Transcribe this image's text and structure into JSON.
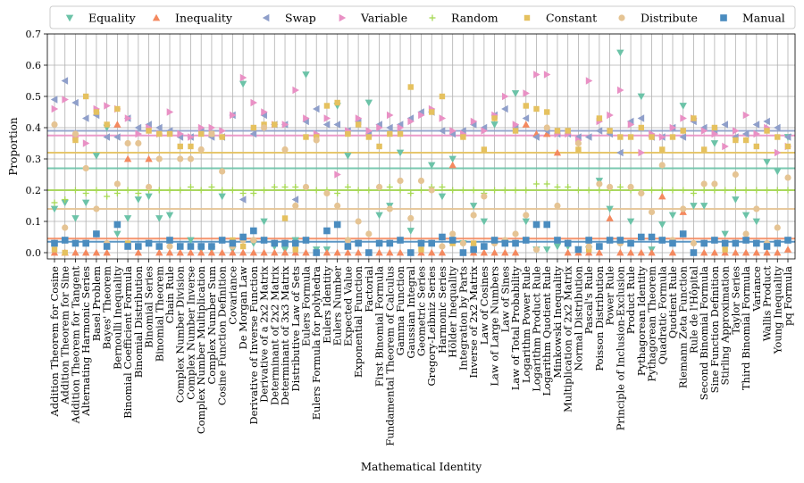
{
  "chart_data": {
    "type": "scatter",
    "xlabel": "Mathematical Identity",
    "ylabel": "Proportion",
    "ylim": [
      -0.02,
      0.7
    ],
    "yticks": [
      0.0,
      0.1,
      0.2,
      0.3,
      0.4,
      0.5,
      0.6,
      0.7
    ],
    "ytick_labels": [
      "0.0",
      "0.1",
      "0.2",
      "0.3",
      "0.4",
      "0.5",
      "0.6",
      "0.7"
    ],
    "grid": true,
    "legend_position": "top",
    "categories": [
      "Addition Theorem for Cosine",
      "Addition Theorem for Sine",
      "Addition Theorem for Tangent",
      "Alternating Harmonic Series",
      "Basel Problem",
      "Bayes' Theorem",
      "Bernoulli Inequality",
      "Binomial Coefficient Formula",
      "Binomial Distribution",
      "Binomial Series",
      "Binomial Theorem",
      "Chain Rule",
      "Complex Number Division",
      "Complex Number Inverse",
      "Complex Number Multiplication",
      "Complex Number Sum",
      "Cosine Function Definition",
      "Covariance",
      "De Morgan Law",
      "Derivative of Inverse Function",
      "Derivative of a 2x2 Matrix",
      "Determinant of 2x2 Matrix",
      "Determinant of 3x3 Matrix",
      "Distributive Law of Sets",
      "Eulers Formula",
      "Eulers Formula for polyhedra",
      "Eulers Identity",
      "Eulers Number",
      "Expected Value",
      "Exponential Function",
      "Factorial",
      "First Binomial Formula",
      "Fundamental Theorem of Calculus",
      "Gamma Function",
      "Gaussian Integral",
      "Geometric Series",
      "Gregory-Leibniz Series",
      "Harmonic Series",
      "Hölder Inequality",
      "Integration by Parts",
      "Inverse of 2x2 Matrix",
      "Law of Cosines",
      "Law of Large Numbers",
      "Law of Sines",
      "Law of Total Probability",
      "Logarithm Power Rule",
      "Logarithm Product Rule",
      "Logarithm Quotient Rule",
      "Minkowski Inequality",
      "Multiplication of 2x2 Matrix",
      "Normal Distribution",
      "Pascal's Rule",
      "Poisson Distribution",
      "Power Rule",
      "Principle of Inclusion-Exclusion",
      "Product Rule",
      "Pythagorean Identity",
      "Pythagorean Theorem",
      "Quadratic Formula",
      "Quotient Rule",
      "Riemann Zeta Function",
      "Rule de l'Hôpital",
      "Second Binomial Formula",
      "Sine Function Definition",
      "Stirling Approximation",
      "Taylor Series",
      "Third Binomial Formula",
      "Variance",
      "Wallis Product",
      "Young Inequality",
      "pq Formula"
    ],
    "series": [
      {
        "name": "Equality",
        "marker": "triangle-down",
        "color": "#6cc3a8",
        "values": [
          0.14,
          0.16,
          0.11,
          0.16,
          0.31,
          0.4,
          0.06,
          0.11,
          0.17,
          0.18,
          0.11,
          0.12,
          0.02,
          0.04,
          0.01,
          0.01,
          0.18,
          0.01,
          0.54,
          0.03,
          0.1,
          0.02,
          0.01,
          0.04,
          0.57,
          0.01,
          0.01,
          0.47,
          0.31,
          0.03,
          0.48,
          0.12,
          0.15,
          0.32,
          0.07,
          0.03,
          0.28,
          0.18,
          0.3,
          0.03,
          0.15,
          0.1,
          0.41,
          0.03,
          0.51,
          0.1,
          0.01,
          0.01,
          0.02,
          0.02,
          0.01,
          0.01,
          0.23,
          0.14,
          0.64,
          0.1,
          0.5,
          0.01,
          0.09,
          0.12,
          0.47,
          0.15,
          0.15,
          0.35,
          0.06,
          0.17,
          0.12,
          0.1,
          0.29,
          0.26,
          0.37
        ]
      },
      {
        "name": "Inequality",
        "marker": "triangle-up",
        "color": "#f4895f",
        "values": [
          0.0,
          0.0,
          0.0,
          0.0,
          0.0,
          0.0,
          0.41,
          0.3,
          0.0,
          0.3,
          0.0,
          0.0,
          0.0,
          0.0,
          0.0,
          0.0,
          0.0,
          0.0,
          0.0,
          0.0,
          0.0,
          0.0,
          0.0,
          0.0,
          0.0,
          0.0,
          0.0,
          0.0,
          0.0,
          0.0,
          0.0,
          0.0,
          0.0,
          0.0,
          0.0,
          0.0,
          0.0,
          0.0,
          0.28,
          0.0,
          0.0,
          0.0,
          0.0,
          0.0,
          0.0,
          0.41,
          0.38,
          0.38,
          0.32,
          0.0,
          0.0,
          0.0,
          0.0,
          0.11,
          0.0,
          0.0,
          0.0,
          0.0,
          0.18,
          0.0,
          0.13,
          0.0,
          0.0,
          0.0,
          0.0,
          0.0,
          0.0,
          0.0,
          0.0,
          0.0,
          0.01
        ]
      },
      {
        "name": "Swap",
        "marker": "triangle-left",
        "color": "#8f9fca",
        "values": [
          0.49,
          0.55,
          0.48,
          0.43,
          0.44,
          0.37,
          0.37,
          0.43,
          0.4,
          0.41,
          0.4,
          0.39,
          0.37,
          0.37,
          0.39,
          0.37,
          0.37,
          0.44,
          0.17,
          0.38,
          0.44,
          0.41,
          0.41,
          0.17,
          0.42,
          0.46,
          0.41,
          0.41,
          0.39,
          0.42,
          0.38,
          0.41,
          0.4,
          0.41,
          0.43,
          0.45,
          0.45,
          0.39,
          0.38,
          0.39,
          0.41,
          0.4,
          0.44,
          0.46,
          0.4,
          0.43,
          0.37,
          0.39,
          0.38,
          0.38,
          0.37,
          0.37,
          0.39,
          0.38,
          0.32,
          0.42,
          0.43,
          0.37,
          0.37,
          0.4,
          0.37,
          0.42,
          0.4,
          0.39,
          0.41,
          0.37,
          0.38,
          0.41,
          0.42,
          0.4,
          0.37
        ]
      },
      {
        "name": "Variable",
        "marker": "triangle-right",
        "color": "#e991c5",
        "values": [
          0.46,
          0.49,
          0.37,
          0.35,
          0.46,
          0.47,
          0.46,
          0.43,
          0.38,
          0.4,
          0.38,
          0.45,
          0.38,
          0.37,
          0.4,
          0.4,
          0.39,
          0.44,
          0.56,
          0.48,
          0.45,
          0.41,
          0.41,
          0.52,
          0.43,
          0.38,
          0.43,
          0.25,
          0.39,
          0.43,
          0.39,
          0.4,
          0.44,
          0.4,
          0.42,
          0.44,
          0.46,
          0.43,
          0.39,
          0.38,
          0.42,
          0.39,
          0.44,
          0.5,
          0.41,
          0.51,
          0.57,
          0.57,
          0.38,
          0.38,
          0.36,
          0.55,
          0.42,
          0.44,
          0.52,
          0.41,
          0.32,
          0.38,
          0.37,
          0.4,
          0.43,
          0.43,
          0.39,
          0.38,
          0.34,
          0.39,
          0.44,
          0.38,
          0.4,
          0.32,
          0.34
        ]
      },
      {
        "name": "Random",
        "marker": "plus",
        "color": "#a6d854",
        "values": [
          0.16,
          0.17,
          0.2,
          0.19,
          0.2,
          0.18,
          0.19,
          0.2,
          0.19,
          0.2,
          0.2,
          0.2,
          0.2,
          0.21,
          0.2,
          0.21,
          0.2,
          0.2,
          0.19,
          0.19,
          0.2,
          0.21,
          0.21,
          0.21,
          0.21,
          0.2,
          0.2,
          0.19,
          0.21,
          0.2,
          0.2,
          0.21,
          0.21,
          0.2,
          0.19,
          0.2,
          0.21,
          0.21,
          0.2,
          0.2,
          0.2,
          0.19,
          0.2,
          0.2,
          0.2,
          0.2,
          0.22,
          0.22,
          0.21,
          0.21,
          0.2,
          0.2,
          0.2,
          0.2,
          0.21,
          0.2,
          0.19,
          0.2,
          0.2,
          0.2,
          0.2,
          0.19,
          0.2,
          0.2,
          0.2,
          0.2,
          0.2,
          0.2,
          0.2,
          0.2,
          0.2
        ]
      },
      {
        "name": "Constant",
        "marker": "square-small",
        "color": "#e5c15f",
        "values": [
          0.01,
          0.0,
          0.36,
          0.5,
          0.45,
          0.41,
          0.46,
          0.03,
          0.02,
          0.39,
          0.38,
          0.38,
          0.34,
          0.34,
          0.38,
          0.38,
          0.37,
          0.04,
          0.02,
          0.4,
          0.41,
          0.41,
          0.11,
          0.01,
          0.37,
          0.37,
          0.47,
          0.48,
          0.38,
          0.41,
          0.37,
          0.34,
          0.38,
          0.38,
          0.53,
          0.01,
          0.45,
          0.5,
          0.03,
          0.37,
          0.03,
          0.33,
          0.43,
          0.03,
          0.39,
          0.47,
          0.46,
          0.45,
          0.39,
          0.39,
          0.33,
          0.01,
          0.43,
          0.39,
          0.37,
          0.37,
          0.4,
          0.37,
          0.33,
          0.37,
          0.39,
          0.43,
          0.33,
          0.4,
          0.01,
          0.36,
          0.36,
          0.34,
          0.39,
          0.37,
          0.34
        ]
      },
      {
        "name": "Distribute",
        "marker": "circle",
        "color": "#e5c494",
        "values": [
          0.41,
          0.08,
          0.38,
          0.27,
          0.14,
          0.03,
          0.22,
          0.35,
          0.35,
          0.21,
          0.3,
          0.02,
          0.3,
          0.3,
          0.33,
          0.38,
          0.26,
          0.02,
          0.04,
          0.04,
          0.4,
          0.03,
          0.33,
          0.15,
          0.21,
          0.36,
          0.19,
          0.15,
          0.04,
          0.1,
          0.06,
          0.21,
          0.14,
          0.23,
          0.11,
          0.23,
          0.2,
          0.02,
          0.06,
          0.03,
          0.12,
          0.18,
          0.03,
          0.04,
          0.06,
          0.12,
          0.01,
          0.4,
          0.15,
          0.03,
          0.35,
          0.02,
          0.22,
          0.21,
          0.03,
          0.21,
          0.19,
          0.13,
          0.28,
          0.04,
          0.14,
          0.03,
          0.22,
          0.22,
          0.03,
          0.25,
          0.06,
          0.14,
          0.03,
          0.08,
          0.24
        ]
      },
      {
        "name": "Manual",
        "marker": "square",
        "color": "#4a8cbf",
        "values": [
          0.03,
          0.04,
          0.03,
          0.03,
          0.06,
          0.02,
          0.09,
          0.02,
          0.02,
          0.03,
          0.02,
          0.04,
          0.02,
          0.02,
          0.02,
          0.02,
          0.04,
          0.03,
          0.05,
          0.07,
          0.04,
          0.03,
          0.03,
          0.03,
          0.04,
          0.0,
          0.07,
          0.09,
          0.02,
          0.03,
          0.0,
          0.03,
          0.03,
          0.04,
          0.0,
          0.03,
          0.03,
          0.05,
          0.04,
          0.0,
          0.01,
          0.02,
          0.04,
          0.03,
          0.03,
          0.04,
          0.09,
          0.09,
          0.04,
          0.03,
          0.01,
          0.04,
          0.02,
          0.04,
          0.04,
          0.03,
          0.05,
          0.05,
          0.04,
          0.03,
          0.06,
          0.0,
          0.03,
          0.04,
          0.03,
          0.03,
          0.04,
          0.03,
          0.02,
          0.03,
          0.04
        ]
      }
    ],
    "reference_lines": [
      {
        "series": "Manual",
        "value": 0.035
      },
      {
        "series": "Inequality",
        "value": 0.045
      },
      {
        "series": "Distribute",
        "value": 0.14
      },
      {
        "series": "Random",
        "value": 0.2
      },
      {
        "series": "Equality",
        "value": 0.27
      },
      {
        "series": "Constant",
        "value": 0.32
      },
      {
        "series": "Variable",
        "value": 0.375
      },
      {
        "series": "Swap",
        "value": 0.39
      }
    ]
  }
}
